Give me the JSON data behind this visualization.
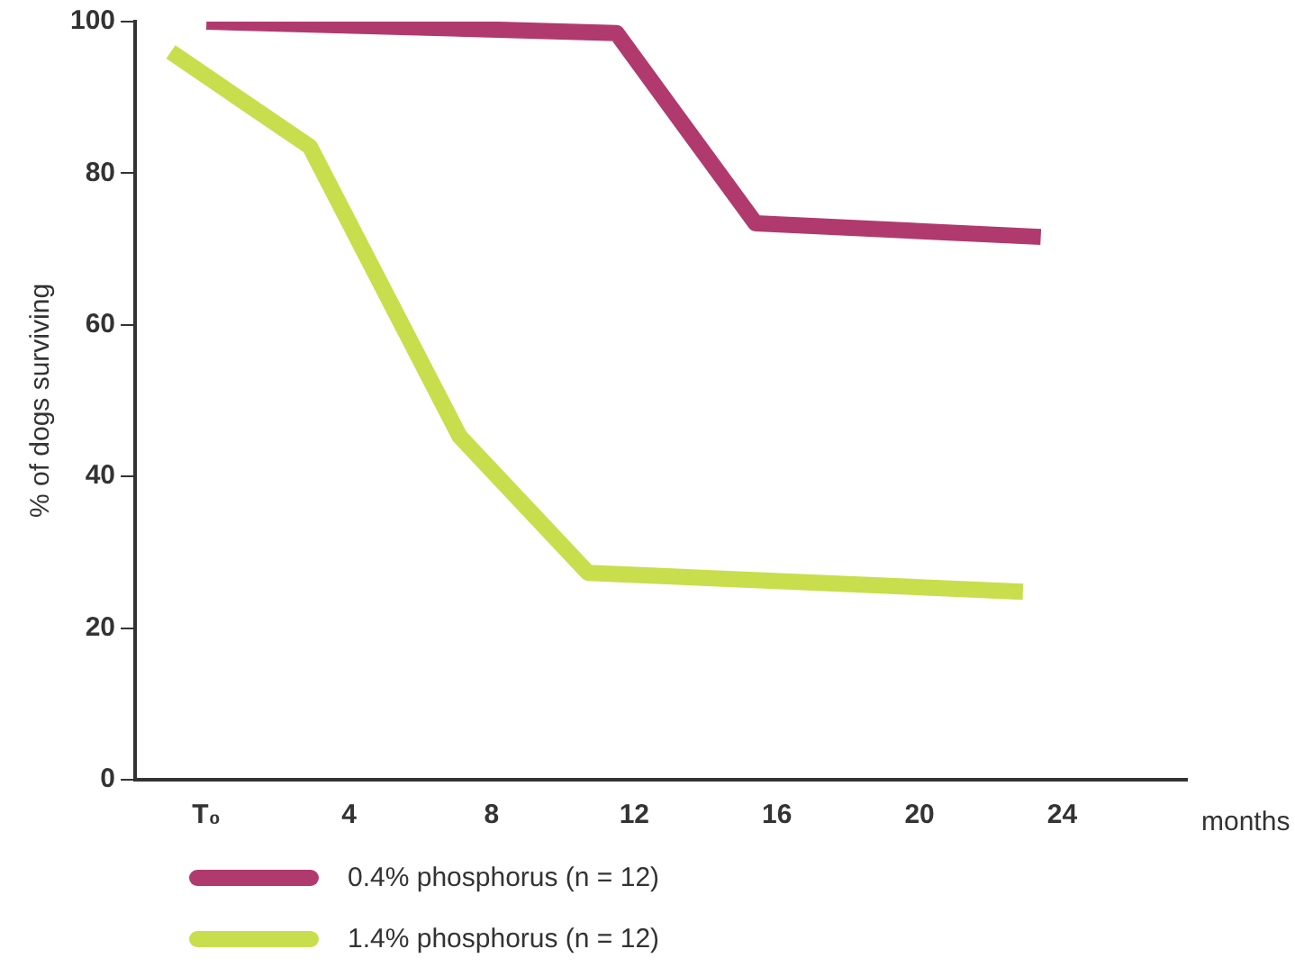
{
  "chart_data": {
    "type": "line",
    "ylabel": "% of dogs surviving",
    "xlabel": "months",
    "xlim": [
      -2,
      27.5
    ],
    "xticks": [
      {
        "value": 0,
        "label": "T₀"
      },
      4,
      8,
      12,
      16,
      20,
      24
    ],
    "ylim": [
      0,
      100
    ],
    "yticks": [
      0,
      20,
      40,
      60,
      80,
      100
    ],
    "grid": false,
    "legend": "bottom",
    "marker": "none",
    "line_style": "solid",
    "series": [
      {
        "name": "0.4% phosphorus (n = 12)",
        "color": "#b03a6e",
        "x": [
          0,
          11.5,
          15.4,
          23.4
        ],
        "values": [
          100,
          98.5,
          73.4,
          71.6
        ]
      },
      {
        "name": "1.4% phosphorus (n = 12)",
        "color": "#c8de4c",
        "x": [
          -1,
          2.9,
          7.1,
          10.7,
          22.9
        ],
        "values": [
          96,
          83.5,
          45.3,
          27.3,
          24.8
        ]
      }
    ]
  }
}
